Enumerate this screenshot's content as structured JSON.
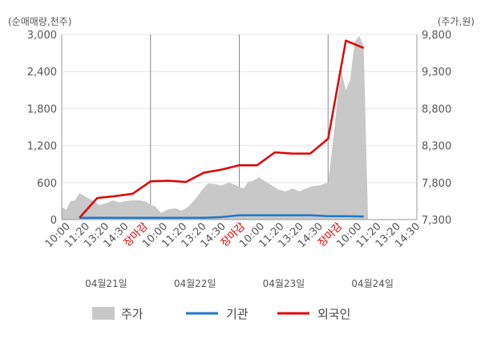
{
  "chart_data": {
    "type": "line",
    "left_axis_unit": "(순매매량,천주)",
    "right_axis_unit": "(주가,원)",
    "left_ticks": [
      "0",
      "600",
      "1,200",
      "1,800",
      "2,400",
      "3,000"
    ],
    "right_ticks": [
      "7,300",
      "7,800",
      "8,300",
      "8,800",
      "9,300",
      "9,800"
    ],
    "left_range": [
      0,
      3000
    ],
    "right_range": [
      7300,
      9800
    ],
    "x_ticks": [
      {
        "label": "10:00",
        "close": false
      },
      {
        "label": "11:20",
        "close": false
      },
      {
        "label": "13:20",
        "close": false
      },
      {
        "label": "14:30",
        "close": false
      },
      {
        "label": "장마감",
        "close": true
      },
      {
        "label": "10:00",
        "close": false
      },
      {
        "label": "11:20",
        "close": false
      },
      {
        "label": "13:20",
        "close": false
      },
      {
        "label": "14:30",
        "close": false
      },
      {
        "label": "장마감",
        "close": true
      },
      {
        "label": "10:00",
        "close": false
      },
      {
        "label": "11:20",
        "close": false
      },
      {
        "label": "13:20",
        "close": false
      },
      {
        "label": "14:30",
        "close": false
      },
      {
        "label": "장마감",
        "close": true
      },
      {
        "label": "10:00",
        "close": false
      },
      {
        "label": "11:20",
        "close": false
      },
      {
        "label": "13:20",
        "close": false
      },
      {
        "label": "14:30",
        "close": false
      }
    ],
    "days": [
      "04월21일",
      "04월22일",
      "04월23일",
      "04월24일"
    ],
    "grid": true,
    "legend_position": "bottom",
    "series": [
      {
        "name": "주가",
        "kind": "area",
        "axis": "right",
        "color": "#c8c8c8",
        "x": [
          0,
          0.05,
          0.1,
          0.15,
          0.2,
          0.28,
          0.35,
          0.42,
          0.5,
          0.58,
          0.65,
          0.72,
          0.8,
          0.88,
          0.95,
          1.0,
          1.05,
          1.12,
          1.2,
          1.28,
          1.35,
          1.42,
          1.5,
          1.58,
          1.65,
          1.72,
          1.8,
          1.88,
          1.95,
          2.0,
          2.05,
          2.1,
          2.15,
          2.22,
          2.3,
          2.38,
          2.45,
          2.52,
          2.6,
          2.68,
          2.75,
          2.82,
          2.9,
          2.95,
          3.0,
          3.05,
          3.1,
          3.15,
          3.2,
          3.25,
          3.3,
          3.35,
          3.4,
          3.45
        ],
        "values": [
          7470,
          7430,
          7550,
          7560,
          7660,
          7600,
          7560,
          7500,
          7520,
          7560,
          7530,
          7550,
          7560,
          7560,
          7540,
          7500,
          7480,
          7390,
          7440,
          7450,
          7420,
          7470,
          7570,
          7700,
          7790,
          7780,
          7760,
          7800,
          7770,
          7740,
          7720,
          7810,
          7820,
          7870,
          7810,
          7750,
          7700,
          7680,
          7720,
          7680,
          7720,
          7750,
          7760,
          7780,
          7800,
          8300,
          8850,
          9300,
          9050,
          9200,
          9700,
          9780,
          9650,
          7300
        ],
        "note": "price area read approximately from the graphic"
      },
      {
        "name": "기관",
        "kind": "line",
        "axis": "left",
        "color": "#1f78c8",
        "x": [
          0.2,
          0.5,
          0.8,
          1.0,
          1.3,
          1.6,
          1.8,
          2.0,
          2.3,
          2.6,
          2.8,
          3.0,
          3.2,
          3.4
        ],
        "values": [
          30,
          30,
          30,
          30,
          30,
          30,
          40,
          70,
          70,
          70,
          70,
          55,
          55,
          50
        ]
      },
      {
        "name": "외국인",
        "kind": "line",
        "axis": "left",
        "color": "#e00000",
        "x": [
          0.2,
          0.4,
          0.6,
          0.8,
          1.0,
          1.2,
          1.4,
          1.6,
          1.8,
          2.0,
          2.2,
          2.4,
          2.6,
          2.8,
          3.0,
          3.2,
          3.4
        ],
        "values": [
          30,
          350,
          380,
          420,
          620,
          630,
          610,
          760,
          810,
          880,
          880,
          1090,
          1070,
          1070,
          1310,
          2900,
          2780
        ]
      }
    ]
  }
}
